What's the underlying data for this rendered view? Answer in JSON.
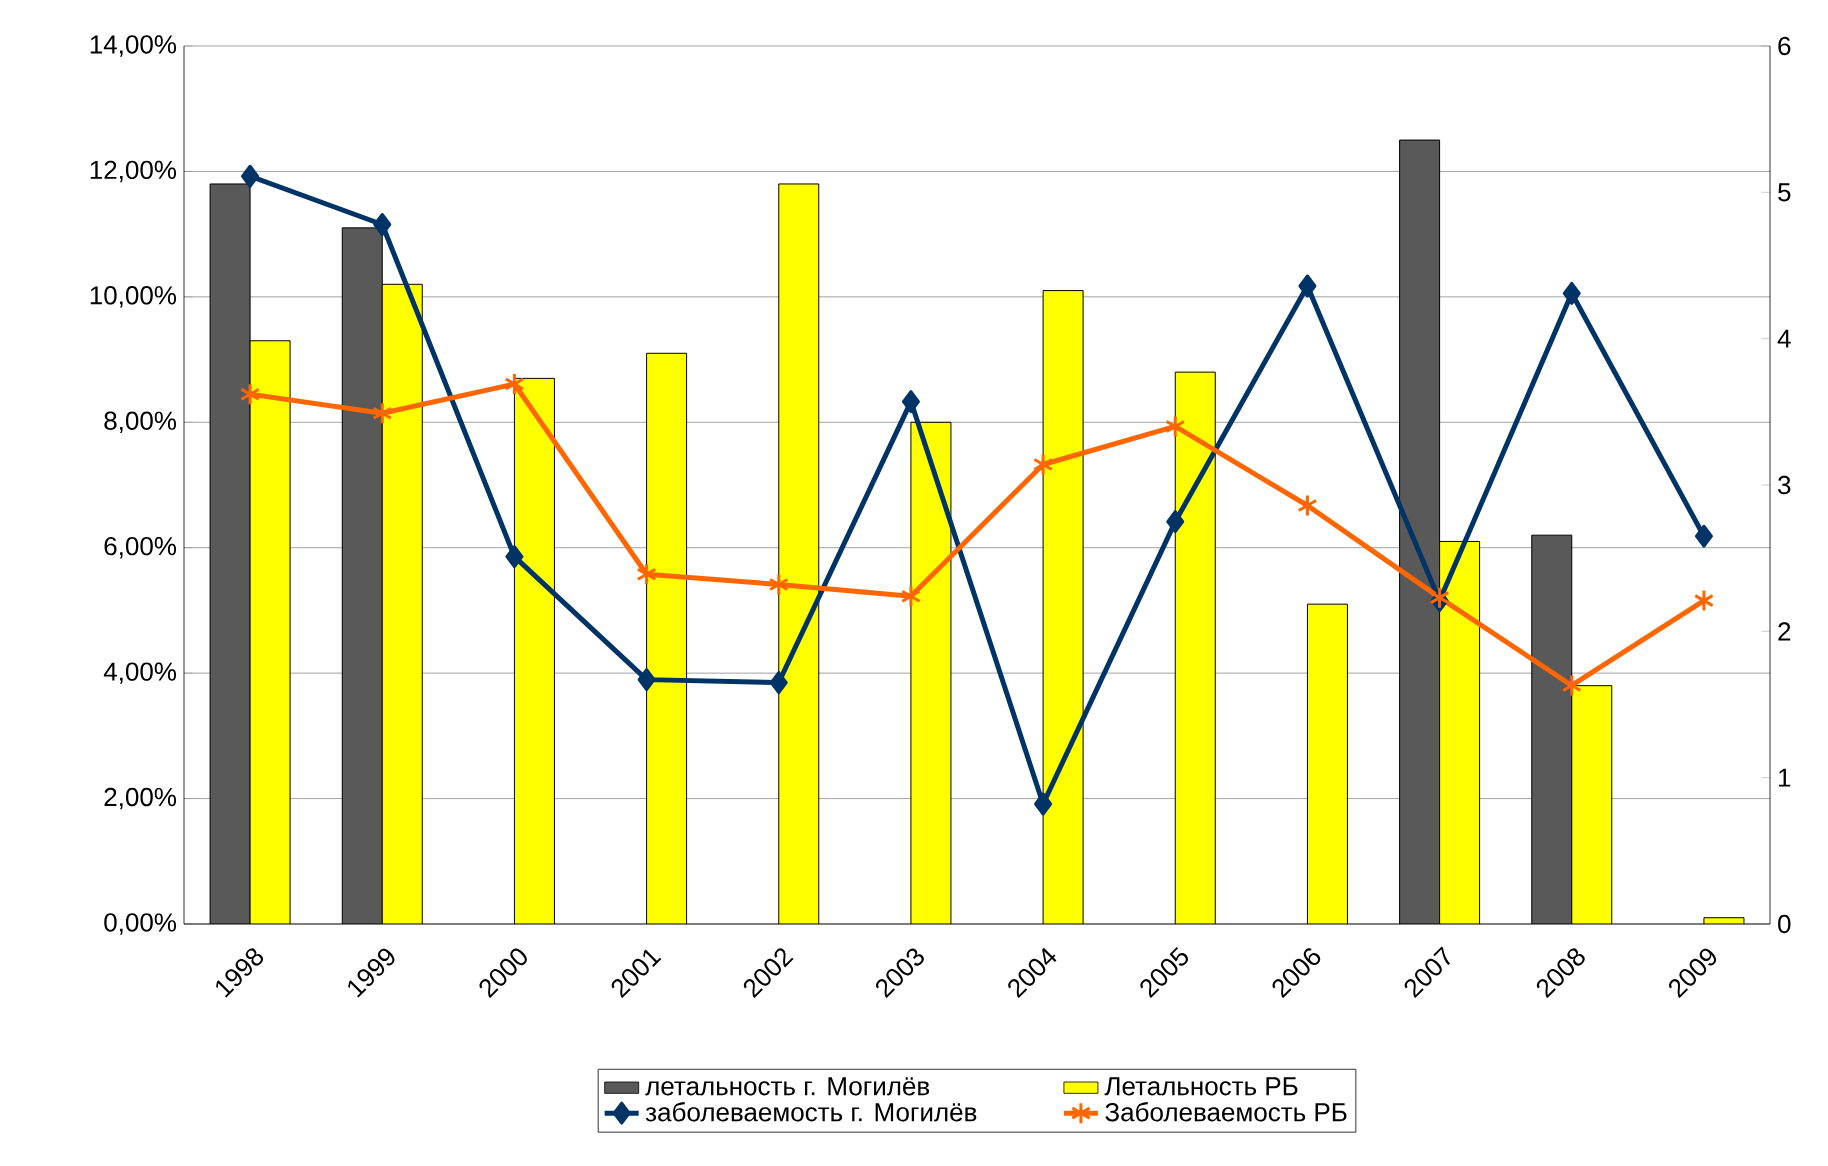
{
  "chart_data": {
    "type": "bar",
    "categories": [
      "1998",
      "1999",
      "2000",
      "2001",
      "2002",
      "2003",
      "2004",
      "2005",
      "2006",
      "2007",
      "2008",
      "2009"
    ],
    "series": [
      {
        "name": "летальность г. Могилёв",
        "color": "#595959",
        "values": [
          11.8,
          11.1,
          null,
          null,
          null,
          null,
          null,
          null,
          null,
          12.5,
          6.2,
          null
        ]
      },
      {
        "name": "Летальность РБ",
        "color": "#ffff00",
        "values": [
          9.3,
          10.2,
          8.7,
          9.1,
          11.8,
          8.0,
          10.1,
          8.8,
          5.1,
          6.1,
          3.8,
          0.1
        ]
      },
      {
        "name": "заболеваемость г. Могилёв",
        "type": "line",
        "axis": "y2",
        "marker": "diamond",
        "color": "#003366",
        "values": [
          5.11,
          4.78,
          2.51,
          1.67,
          1.65,
          3.57,
          0.82,
          2.75,
          4.36,
          2.21,
          4.31,
          2.65
        ]
      },
      {
        "name": "Заболеваемость РБ",
        "type": "line",
        "axis": "y2",
        "marker": "cross",
        "color": "#ff6600",
        "values": [
          3.62,
          3.49,
          3.69,
          2.39,
          2.32,
          2.24,
          3.14,
          3.4,
          2.86,
          2.23,
          1.63,
          2.21
        ]
      }
    ],
    "ylim": [
      0,
      14
    ],
    "yticks": [
      {
        "value": 0,
        "label": "0,00%"
      },
      {
        "value": 2,
        "label": "2,00%"
      },
      {
        "value": 4,
        "label": "4,00%"
      },
      {
        "value": 6,
        "label": "6,00%"
      },
      {
        "value": 8,
        "label": "8,00%"
      },
      {
        "value": 10,
        "label": "10,00%"
      },
      {
        "value": 12,
        "label": "12,00%"
      },
      {
        "value": 14,
        "label": "14,00%"
      }
    ],
    "y2lim": [
      0,
      6
    ],
    "y2ticks": [
      0,
      1,
      2,
      3,
      4,
      5,
      6
    ],
    "grid": "y",
    "legend": "bottom"
  }
}
